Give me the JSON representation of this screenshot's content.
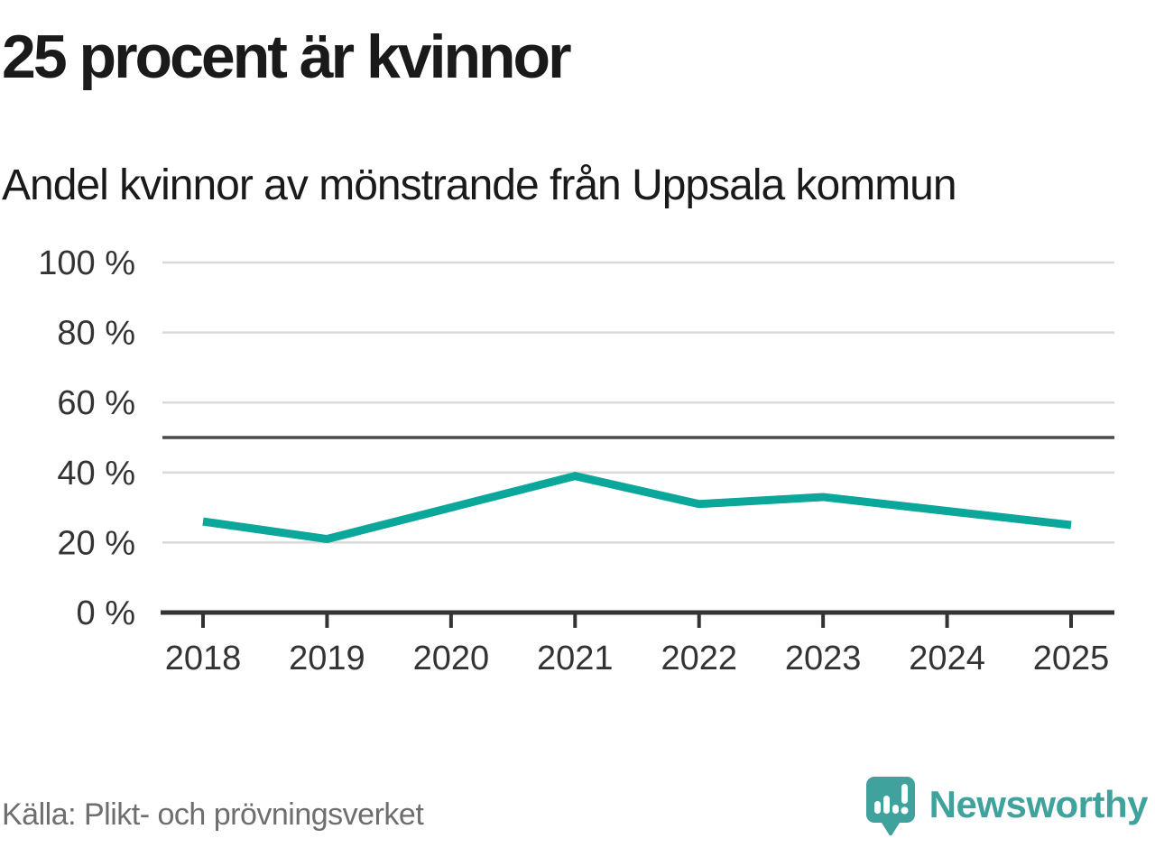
{
  "header": {
    "title": "25 procent är kvinnor",
    "subtitle": "Andel kvinnor av mönstrande från Uppsala kommun"
  },
  "chart_data": {
    "type": "line",
    "title": "25 procent är kvinnor",
    "subtitle": "Andel kvinnor av mönstrande från Uppsala kommun",
    "x": [
      "2018",
      "2019",
      "2020",
      "2021",
      "2022",
      "2023",
      "2024",
      "2025"
    ],
    "series": [
      {
        "name": "Andel kvinnor av mönstrande",
        "values": [
          26,
          21,
          30,
          39,
          31,
          33,
          29,
          25
        ]
      }
    ],
    "unit": "%",
    "ylim": [
      0,
      100
    ],
    "yticks": [
      0,
      20,
      40,
      60,
      80,
      100
    ],
    "ytick_suffix": " %",
    "reference_line": 50,
    "grid": true,
    "legend": "none",
    "line_color": "#0ba79b",
    "grid_color": "#d9d9d9",
    "reference_color": "#4a4a4a",
    "axis_color": "#333333",
    "tick_label_color": "#333333"
  },
  "footer": {
    "source": "Källa: Plikt- och prövningsverket",
    "brand": "Newsworthy",
    "brand_color": "#3fa29c",
    "logo_icon": "speech-bubble-bar-chart-icon"
  }
}
